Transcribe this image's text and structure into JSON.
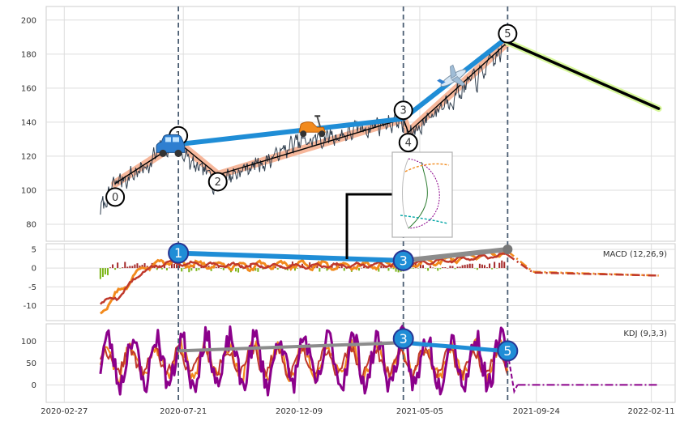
{
  "chart_data": {
    "type": "line",
    "x_ticks": [
      "2020-02-27",
      "2020-07-21",
      "2020-12-09",
      "2021-05-05",
      "2021-09-24",
      "2022-02-11"
    ],
    "panels": [
      {
        "name": "price",
        "y_ticks": [
          80,
          100,
          120,
          140,
          160,
          180,
          200
        ],
        "ylim": [
          70,
          208
        ],
        "series": [
          {
            "kind": "price-line",
            "points": [
              [
                "2020-04-11",
                88
              ],
              [
                "2020-05-01",
                105
              ],
              [
                "2020-06-01",
                112
              ],
              [
                "2020-06-25",
                124
              ],
              [
                "2020-07-10",
                128
              ],
              [
                "2020-08-05",
                112
              ],
              [
                "2020-09-01",
                106
              ],
              [
                "2020-10-01",
                112
              ],
              [
                "2020-11-01",
                118
              ],
              [
                "2020-12-01",
                126
              ],
              [
                "2021-01-01",
                130
              ],
              [
                "2021-02-01",
                133
              ],
              [
                "2021-03-01",
                137
              ],
              [
                "2021-04-12",
                142
              ],
              [
                "2021-04-22",
                131
              ],
              [
                "2021-05-15",
                143
              ],
              [
                "2021-06-15",
                156
              ],
              [
                "2021-07-15",
                166
              ],
              [
                "2021-08-10",
                180
              ],
              [
                "2021-08-20",
                190
              ]
            ]
          },
          {
            "kind": "zigzag",
            "points": [
              [
                "2020-04-29",
                104
              ],
              [
                "2020-07-15",
                128
              ],
              [
                "2020-09-01",
                109
              ],
              [
                "2021-04-15",
                142
              ],
              [
                "2021-04-21",
                134
              ],
              [
                "2021-08-20",
                187
              ]
            ]
          },
          {
            "kind": "trend-blue",
            "points": [
              [
                "2020-07-15",
                127
              ],
              [
                "2021-04-15",
                142
              ],
              [
                "2021-08-20",
                190
              ]
            ]
          },
          {
            "kind": "forecast",
            "points": [
              [
                "2021-08-20",
                187
              ],
              [
                "2022-02-20",
                148
              ]
            ]
          }
        ],
        "markers": [
          {
            "label": "0",
            "x": "2020-04-29",
            "y": 96
          },
          {
            "label": "1",
            "x": "2020-07-15",
            "y": 132
          },
          {
            "label": "2",
            "x": "2020-09-01",
            "y": 105
          },
          {
            "label": "3",
            "x": "2021-04-15",
            "y": 147
          },
          {
            "label": "4",
            "x": "2021-04-21",
            "y": 128
          },
          {
            "label": "5",
            "x": "2021-08-20",
            "y": 192
          }
        ],
        "icons": [
          {
            "name": "car-icon",
            "x": "2020-07-05",
            "y": 125
          },
          {
            "name": "scooter-icon",
            "x": "2020-12-25",
            "y": 136
          },
          {
            "name": "airplane-icon",
            "x": "2021-06-15",
            "y": 166
          }
        ]
      },
      {
        "name": "macd",
        "label": "MACD (12,26,9)",
        "y_ticks": [
          -10,
          -5,
          0,
          5
        ],
        "ylim": [
          -14,
          6.5
        ],
        "series": [
          {
            "kind": "macd-line",
            "points": [
              [
                "2020-04-11",
                -12
              ],
              [
                "2020-05-01",
                -7
              ],
              [
                "2020-06-01",
                0
              ],
              [
                "2020-07-01",
                2
              ],
              [
                "2020-08-01",
                1
              ],
              [
                "2020-10-01",
                0.5
              ],
              [
                "2020-12-01",
                1
              ],
              [
                "2021-02-01",
                0.5
              ],
              [
                "2021-04-15",
                1
              ],
              [
                "2021-06-01",
                2
              ],
              [
                "2021-08-20",
                4.5
              ],
              [
                "2021-09-20",
                -1
              ],
              [
                "2022-02-20",
                -2
              ]
            ]
          },
          {
            "kind": "signal-line",
            "points": [
              [
                "2020-04-11",
                -9
              ],
              [
                "2020-05-01",
                -8
              ],
              [
                "2020-06-01",
                -1
              ],
              [
                "2020-07-01",
                1.5
              ],
              [
                "2020-09-01",
                0.8
              ],
              [
                "2020-12-01",
                0.5
              ],
              [
                "2021-04-15",
                1
              ],
              [
                "2021-08-20",
                3.5
              ],
              [
                "2021-09-20",
                -1.2
              ],
              [
                "2022-02-20",
                -2
              ]
            ]
          },
          {
            "kind": "trend-blue",
            "points": [
              [
                "2020-07-15",
                4
              ],
              [
                "2021-04-15",
                2
              ]
            ]
          },
          {
            "kind": "trend-gray",
            "points": [
              [
                "2021-04-15",
                2
              ],
              [
                "2021-08-20",
                5
              ]
            ]
          }
        ],
        "markers": [
          {
            "label": "1",
            "x": "2020-07-15",
            "y": 4
          },
          {
            "label": "3",
            "x": "2021-04-15",
            "y": 2
          },
          {
            "label": "",
            "x": "2021-08-20",
            "y": 5
          }
        ]
      },
      {
        "name": "kdj",
        "label": "KDJ (9,3,3)",
        "y_ticks": [
          0,
          50,
          100
        ],
        "ylim": [
          -40,
          140
        ],
        "series": [
          {
            "kind": "trend-gray",
            "points": [
              [
                "2020-07-15",
                78
              ],
              [
                "2021-04-15",
                97
              ]
            ]
          },
          {
            "kind": "trend-blue",
            "points": [
              [
                "2021-04-15",
                97
              ],
              [
                "2021-08-20",
                77
              ]
            ]
          },
          {
            "kind": "kdj-flat",
            "points": [
              [
                "2021-09-01",
                0
              ],
              [
                "2022-02-20",
                0
              ]
            ]
          }
        ],
        "markers": [
          {
            "label": "3",
            "x": "2021-04-15",
            "y": 106
          },
          {
            "label": "5",
            "x": "2021-08-20",
            "y": 78
          }
        ]
      }
    ],
    "vlines": [
      "2020-07-15",
      "2021-04-15",
      "2021-08-20"
    ],
    "colors": {
      "blue": "#1f8dd6",
      "navy": "#283593",
      "orange": "#f28a1d",
      "red": "#c0392b",
      "purple": "#8b008b",
      "gray": "#8c8c8c",
      "green": "#7cb518",
      "darkred": "#a52a2a",
      "salmon": "#f4a582",
      "lime": "#d9f99d",
      "vline": "#4b5d72"
    }
  }
}
